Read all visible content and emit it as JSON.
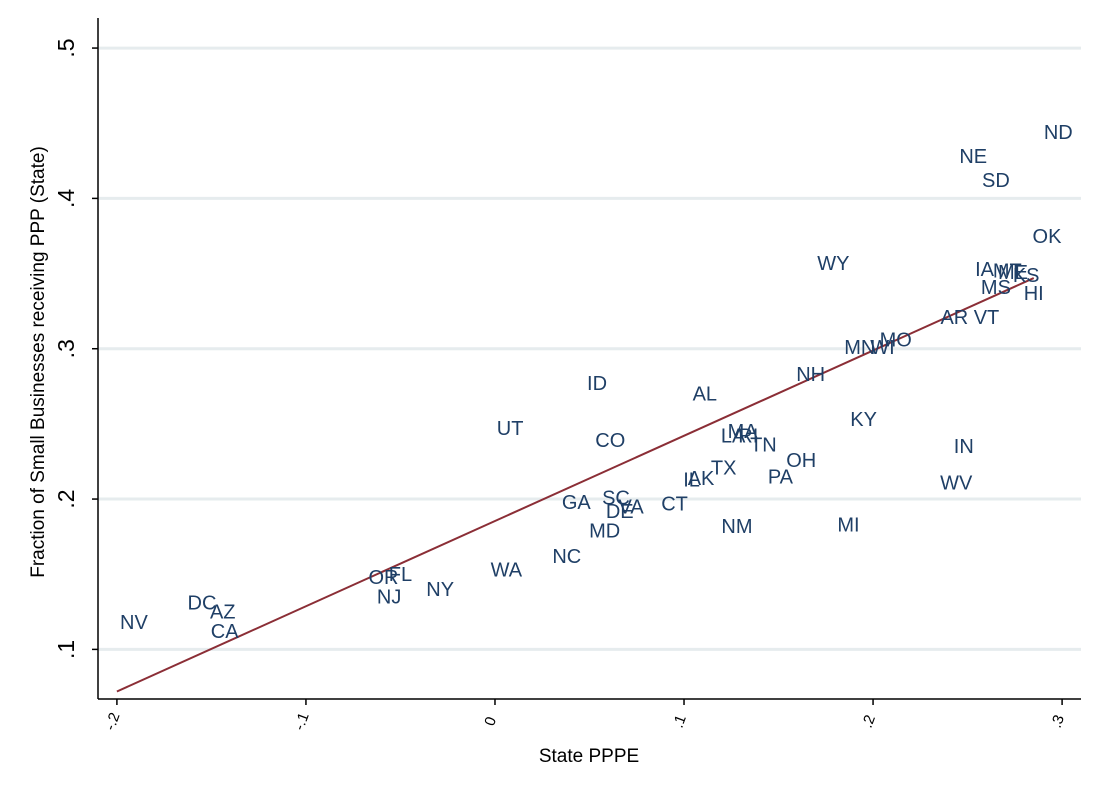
{
  "chart_data": {
    "type": "scatter",
    "xlabel": "State PPPE",
    "ylabel": "Fraction of Small Businesses receiving PPP (State)",
    "xlim": [
      -0.21,
      0.31
    ],
    "ylim": [
      0.067,
      0.52
    ],
    "x_ticks": [
      {
        "value": -0.2,
        "label": "-.2"
      },
      {
        "value": -0.1,
        "label": "-.1"
      },
      {
        "value": 0,
        "label": "0"
      },
      {
        "value": 0.1,
        "label": ".1"
      },
      {
        "value": 0.2,
        "label": ".2"
      },
      {
        "value": 0.3,
        "label": ".3"
      }
    ],
    "y_ticks": [
      {
        "value": 0.1,
        "label": ".1"
      },
      {
        "value": 0.2,
        "label": ".2"
      },
      {
        "value": 0.3,
        "label": ".3"
      },
      {
        "value": 0.4,
        "label": ".4"
      },
      {
        "value": 0.5,
        "label": ".5"
      }
    ],
    "grid": "horizontal",
    "label_color": "#1f3f66",
    "fit_color": "#8b2e36",
    "fit_line": {
      "x": [
        -0.2,
        0.285
      ],
      "y": [
        0.072,
        0.347
      ]
    },
    "points": [
      {
        "label": "NV",
        "x": -0.191,
        "y": 0.117
      },
      {
        "label": "DC",
        "x": -0.155,
        "y": 0.13
      },
      {
        "label": "AZ",
        "x": -0.144,
        "y": 0.124
      },
      {
        "label": "CA",
        "x": -0.143,
        "y": 0.111
      },
      {
        "label": "OR",
        "x": -0.059,
        "y": 0.147
      },
      {
        "label": "FL",
        "x": -0.05,
        "y": 0.149
      },
      {
        "label": "NJ",
        "x": -0.056,
        "y": 0.134
      },
      {
        "label": "NY",
        "x": -0.029,
        "y": 0.139
      },
      {
        "label": "WA",
        "x": 0.006,
        "y": 0.152
      },
      {
        "label": "NC",
        "x": 0.038,
        "y": 0.161
      },
      {
        "label": "UT",
        "x": 0.008,
        "y": 0.246
      },
      {
        "label": "ID",
        "x": 0.054,
        "y": 0.276
      },
      {
        "label": "CO",
        "x": 0.061,
        "y": 0.238
      },
      {
        "label": "GA",
        "x": 0.043,
        "y": 0.197
      },
      {
        "label": "SC",
        "x": 0.064,
        "y": 0.2
      },
      {
        "label": "DE",
        "x": 0.066,
        "y": 0.191
      },
      {
        "label": "VA",
        "x": 0.072,
        "y": 0.194
      },
      {
        "label": "MD",
        "x": 0.058,
        "y": 0.178
      },
      {
        "label": "CT",
        "x": 0.095,
        "y": 0.196
      },
      {
        "label": "IL",
        "x": 0.104,
        "y": 0.212
      },
      {
        "label": "AK",
        "x": 0.109,
        "y": 0.213
      },
      {
        "label": "TX",
        "x": 0.121,
        "y": 0.22
      },
      {
        "label": "AL",
        "x": 0.111,
        "y": 0.269
      },
      {
        "label": "LA",
        "x": 0.126,
        "y": 0.241
      },
      {
        "label": "MA",
        "x": 0.131,
        "y": 0.244
      },
      {
        "label": "RI",
        "x": 0.134,
        "y": 0.241
      },
      {
        "label": "TN",
        "x": 0.142,
        "y": 0.235
      },
      {
        "label": "OH",
        "x": 0.162,
        "y": 0.225
      },
      {
        "label": "PA",
        "x": 0.151,
        "y": 0.214
      },
      {
        "label": "NM",
        "x": 0.128,
        "y": 0.181
      },
      {
        "label": "MI",
        "x": 0.187,
        "y": 0.182
      },
      {
        "label": "KY",
        "x": 0.195,
        "y": 0.252
      },
      {
        "label": "NH",
        "x": 0.167,
        "y": 0.282
      },
      {
        "label": "WY",
        "x": 0.179,
        "y": 0.356
      },
      {
        "label": "MN",
        "x": 0.193,
        "y": 0.3
      },
      {
        "label": "WI",
        "x": 0.205,
        "y": 0.3
      },
      {
        "label": "MO",
        "x": 0.212,
        "y": 0.305
      },
      {
        "label": "AR",
        "x": 0.243,
        "y": 0.32
      },
      {
        "label": "VT",
        "x": 0.26,
        "y": 0.32
      },
      {
        "label": "IN",
        "x": 0.248,
        "y": 0.234
      },
      {
        "label": "WV",
        "x": 0.244,
        "y": 0.21
      },
      {
        "label": "NE",
        "x": 0.253,
        "y": 0.427
      },
      {
        "label": "SD",
        "x": 0.265,
        "y": 0.411
      },
      {
        "label": "ND",
        "x": 0.298,
        "y": 0.443
      },
      {
        "label": "OK",
        "x": 0.292,
        "y": 0.374
      },
      {
        "label": "IA",
        "x": 0.259,
        "y": 0.352
      },
      {
        "label": "MT",
        "x": 0.271,
        "y": 0.351
      },
      {
        "label": "ME",
        "x": 0.274,
        "y": 0.35
      },
      {
        "label": "KS",
        "x": 0.281,
        "y": 0.348
      },
      {
        "label": "MS",
        "x": 0.265,
        "y": 0.34
      },
      {
        "label": "HI",
        "x": 0.285,
        "y": 0.336
      }
    ]
  }
}
